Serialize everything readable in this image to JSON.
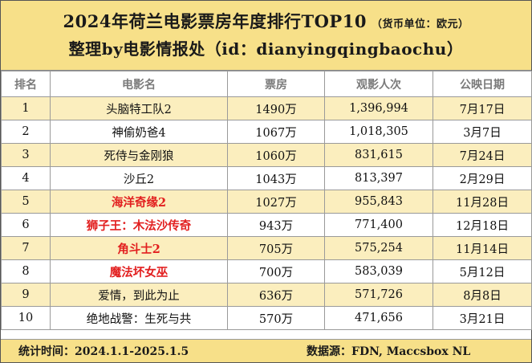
{
  "header": {
    "title": "2024年荷兰电影票房年度排行TOP10",
    "currency_note": "（货币单位：欧元）",
    "subtitle": "整理by电影情报处（id：dianyingqingbaochu）"
  },
  "table": {
    "columns": [
      "排名",
      "电影名",
      "票房",
      "观影人次",
      "公映日期"
    ],
    "rows": [
      {
        "rank": "1",
        "title": "头脑特工队2",
        "box": "1490万",
        "admissions": "1,396,994",
        "date": "7月17日",
        "highlight": false
      },
      {
        "rank": "2",
        "title": "神偷奶爸4",
        "box": "1067万",
        "admissions": "1,018,305",
        "date": "3月7日",
        "highlight": false
      },
      {
        "rank": "3",
        "title": "死侍与金刚狼",
        "box": "1060万",
        "admissions": "831,615",
        "date": "7月24日",
        "highlight": false
      },
      {
        "rank": "4",
        "title": "沙丘2",
        "box": "1043万",
        "admissions": "813,397",
        "date": "2月29日",
        "highlight": false
      },
      {
        "rank": "5",
        "title": "海洋奇缘2",
        "box": "1027万",
        "admissions": "955,843",
        "date": "11月28日",
        "highlight": true
      },
      {
        "rank": "6",
        "title": "狮子王：木法沙传奇",
        "box": "943万",
        "admissions": "771,400",
        "date": "12月18日",
        "highlight": true
      },
      {
        "rank": "7",
        "title": "角斗士2",
        "box": "705万",
        "admissions": "575,254",
        "date": "11月14日",
        "highlight": true
      },
      {
        "rank": "8",
        "title": "魔法坏女巫",
        "box": "700万",
        "admissions": "583,039",
        "date": "5月12日",
        "highlight": true
      },
      {
        "rank": "9",
        "title": "爱情，到此为止",
        "box": "636万",
        "admissions": "571,726",
        "date": "8月8日",
        "highlight": false
      },
      {
        "rank": "10",
        "title": "绝地战警：生死与共",
        "box": "570万",
        "admissions": "471,656",
        "date": "3月21日",
        "highlight": false
      }
    ]
  },
  "footer": {
    "period": "统计时间：2024.1.1-2025.1.5",
    "source": "数据源：FDN, Maccsbox NL"
  },
  "colors": {
    "header_bg": "#f7e089",
    "odd_row_bg": "#fbeebe",
    "highlight_text": "#e21f1f"
  }
}
